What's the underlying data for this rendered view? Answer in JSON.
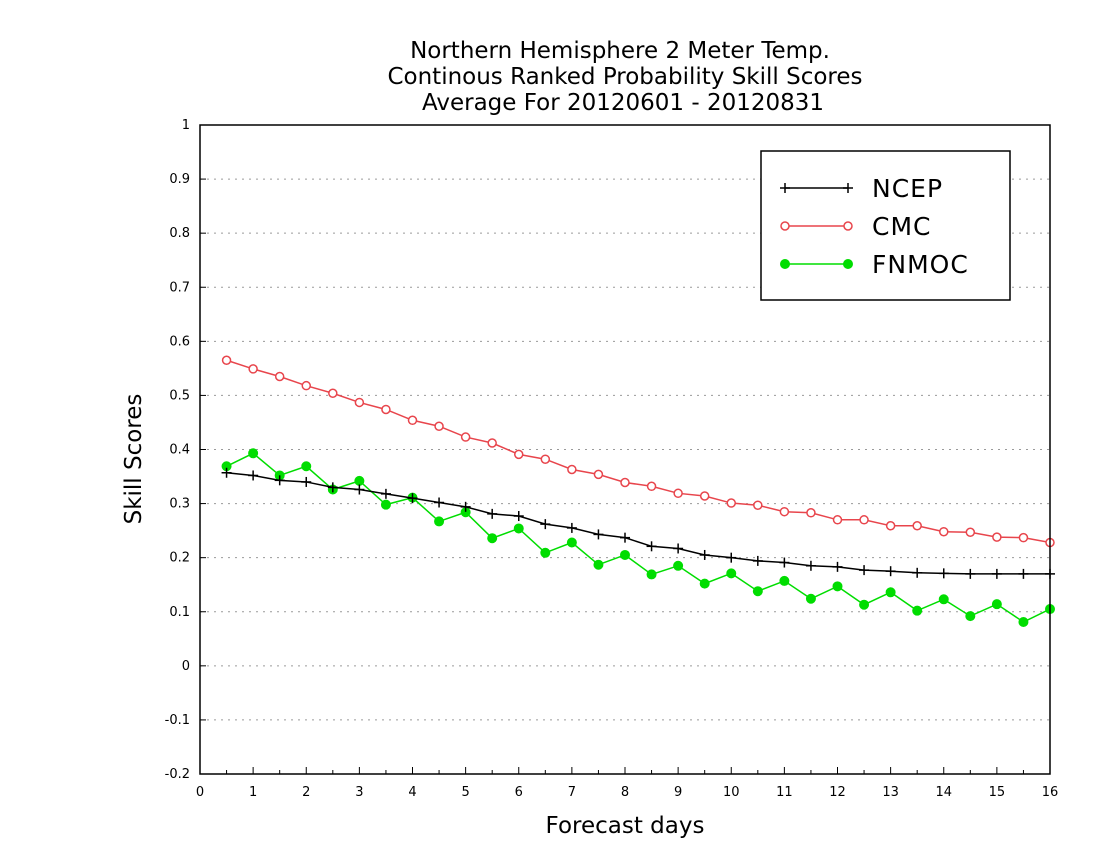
{
  "chart_data": {
    "type": "line",
    "title": [
      "Northern Hemisphere 2 Meter Temp.",
      "Continous Ranked Probability Skill Scores",
      "Average For 20120601 - 20120831"
    ],
    "xlabel": "Forecast days",
    "ylabel": "Skill Scores",
    "xlim": [
      0,
      16
    ],
    "ylim": [
      -0.2,
      1
    ],
    "xticks": [
      "0",
      "1",
      "2",
      "3",
      "4",
      "5",
      "6",
      "7",
      "8",
      "9",
      "10",
      "11",
      "12",
      "13",
      "14",
      "15",
      "16"
    ],
    "yticks": [
      "-0.2",
      "-0.1",
      "0",
      "0.1",
      "0.2",
      "0.3",
      "0.4",
      "0.5",
      "0.6",
      "0.7",
      "0.8",
      "0.9",
      "1"
    ],
    "grid": "horizontal dotted",
    "legend_position": "top-right",
    "x": [
      0.5,
      1,
      1.5,
      2,
      2.5,
      3,
      3.5,
      4,
      4.5,
      5,
      5.5,
      6,
      6.5,
      7,
      7.5,
      8,
      8.5,
      9,
      9.5,
      10,
      10.5,
      11,
      11.5,
      12,
      12.5,
      13,
      13.5,
      14,
      14.5,
      15,
      15.5,
      16
    ],
    "series": [
      {
        "name": "NCEP",
        "color": "#000000",
        "marker": "plus",
        "values": [
          0.357,
          0.352,
          0.343,
          0.34,
          0.33,
          0.326,
          0.318,
          0.31,
          0.302,
          0.294,
          0.281,
          0.277,
          0.262,
          0.255,
          0.243,
          0.237,
          0.221,
          0.217,
          0.205,
          0.2,
          0.194,
          0.191,
          0.185,
          0.183,
          0.177,
          0.175,
          0.172,
          0.171,
          0.17,
          0.17,
          0.17,
          0.17
        ]
      },
      {
        "name": "CMC",
        "color": "#e8454c",
        "marker": "open-circle",
        "values": [
          0.565,
          0.549,
          0.535,
          0.518,
          0.504,
          0.487,
          0.474,
          0.454,
          0.443,
          0.423,
          0.412,
          0.391,
          0.382,
          0.363,
          0.354,
          0.339,
          0.332,
          0.319,
          0.314,
          0.301,
          0.297,
          0.285,
          0.283,
          0.27,
          0.27,
          0.259,
          0.259,
          0.248,
          0.247,
          0.238,
          0.237,
          0.228
        ]
      },
      {
        "name": "FNMOC",
        "color": "#00dd00",
        "marker": "filled-circle",
        "values": [
          0.369,
          0.393,
          0.352,
          0.369,
          0.326,
          0.342,
          0.298,
          0.311,
          0.267,
          0.284,
          0.236,
          0.254,
          0.209,
          0.228,
          0.187,
          0.205,
          0.169,
          0.185,
          0.152,
          0.171,
          0.138,
          0.157,
          0.124,
          0.147,
          0.113,
          0.136,
          0.102,
          0.123,
          0.092,
          0.114,
          0.081,
          0.105
        ]
      }
    ]
  }
}
